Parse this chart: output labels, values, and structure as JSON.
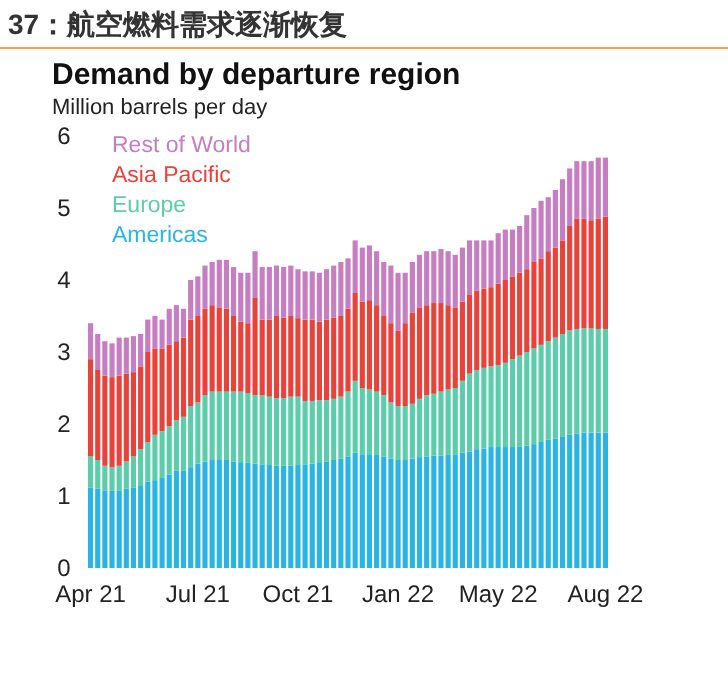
{
  "chart_data": {
    "type": "bar",
    "stacked": true,
    "title": "37：航空燃料需求逐渐恢复",
    "subtitle": "Demand by departure region",
    "ylabel": "Million barrels per day",
    "categories": [
      "Apr 21",
      null,
      null,
      null,
      null,
      null,
      null,
      null,
      null,
      null,
      null,
      null,
      null,
      null,
      null,
      "Jul 21",
      null,
      null,
      null,
      null,
      null,
      null,
      null,
      null,
      null,
      null,
      null,
      null,
      null,
      "Oct 21",
      null,
      null,
      null,
      null,
      null,
      null,
      null,
      null,
      null,
      null,
      null,
      null,
      null,
      "Jan 22",
      null,
      null,
      null,
      null,
      null,
      null,
      null,
      null,
      null,
      null,
      null,
      null,
      null,
      "May 22",
      null,
      null,
      null,
      null,
      null,
      null,
      null,
      null,
      null,
      null,
      null,
      null,
      null,
      null,
      "Aug 22"
    ],
    "series": [
      {
        "name": "Americas",
        "color": "#2ab4e4",
        "values": [
          1.12,
          1.1,
          1.07,
          1.07,
          1.07,
          1.1,
          1.12,
          1.15,
          1.2,
          1.22,
          1.25,
          1.3,
          1.35,
          1.35,
          1.4,
          1.45,
          1.48,
          1.5,
          1.5,
          1.5,
          1.48,
          1.47,
          1.46,
          1.45,
          1.44,
          1.43,
          1.42,
          1.42,
          1.42,
          1.43,
          1.44,
          1.45,
          1.47,
          1.48,
          1.5,
          1.52,
          1.55,
          1.6,
          1.58,
          1.58,
          1.57,
          1.55,
          1.52,
          1.5,
          1.5,
          1.52,
          1.54,
          1.55,
          1.56,
          1.56,
          1.57,
          1.58,
          1.6,
          1.62,
          1.65,
          1.66,
          1.68,
          1.68,
          1.68,
          1.68,
          1.69,
          1.7,
          1.72,
          1.75,
          1.78,
          1.8,
          1.82,
          1.85,
          1.87,
          1.88,
          1.88,
          1.88,
          1.88
        ]
      },
      {
        "name": "Europe",
        "color": "#5ccdaa",
        "values": [
          0.43,
          0.4,
          0.35,
          0.33,
          0.35,
          0.38,
          0.43,
          0.5,
          0.55,
          0.63,
          0.65,
          0.67,
          0.7,
          0.75,
          0.85,
          0.85,
          0.92,
          0.95,
          0.95,
          0.95,
          0.97,
          0.98,
          0.97,
          0.95,
          0.96,
          0.95,
          0.94,
          0.94,
          0.96,
          0.95,
          0.88,
          0.87,
          0.86,
          0.85,
          0.85,
          0.86,
          0.9,
          1.0,
          0.92,
          0.9,
          0.88,
          0.85,
          0.78,
          0.75,
          0.75,
          0.76,
          0.81,
          0.85,
          0.86,
          0.89,
          0.91,
          0.92,
          1.0,
          1.08,
          1.1,
          1.12,
          1.12,
          1.14,
          1.17,
          1.22,
          1.26,
          1.3,
          1.33,
          1.35,
          1.37,
          1.4,
          1.43,
          1.45,
          1.45,
          1.45,
          1.45,
          1.44,
          1.44
        ]
      },
      {
        "name": "Asia Pacific",
        "color": "#e8433a",
        "values": [
          1.35,
          1.25,
          1.25,
          1.25,
          1.25,
          1.22,
          1.17,
          1.15,
          1.25,
          1.2,
          1.15,
          1.13,
          1.1,
          1.1,
          1.2,
          1.2,
          1.2,
          1.2,
          1.17,
          1.15,
          1.05,
          0.97,
          0.97,
          1.35,
          1.05,
          1.07,
          1.14,
          1.12,
          1.12,
          1.09,
          1.13,
          1.13,
          1.09,
          1.12,
          1.13,
          1.12,
          1.15,
          1.22,
          1.2,
          1.24,
          1.2,
          1.1,
          1.1,
          1.05,
          1.15,
          1.27,
          1.27,
          1.25,
          1.26,
          1.23,
          1.17,
          1.12,
          1.1,
          1.1,
          1.1,
          1.1,
          1.1,
          1.13,
          1.15,
          1.15,
          1.15,
          1.15,
          1.2,
          1.2,
          1.25,
          1.25,
          1.3,
          1.45,
          1.53,
          1.52,
          1.5,
          1.53,
          1.56
        ]
      },
      {
        "name": "Rest of World",
        "color": "#c77dc2",
        "values": [
          0.5,
          0.5,
          0.48,
          0.47,
          0.53,
          0.5,
          0.5,
          0.45,
          0.45,
          0.45,
          0.4,
          0.5,
          0.5,
          0.4,
          0.55,
          0.55,
          0.6,
          0.6,
          0.66,
          0.68,
          0.68,
          0.68,
          0.7,
          0.65,
          0.73,
          0.73,
          0.7,
          0.7,
          0.7,
          0.68,
          0.67,
          0.67,
          0.68,
          0.7,
          0.72,
          0.75,
          0.7,
          0.73,
          0.75,
          0.76,
          0.75,
          0.75,
          0.8,
          0.8,
          0.7,
          0.7,
          0.73,
          0.75,
          0.72,
          0.75,
          0.75,
          0.73,
          0.75,
          0.75,
          0.7,
          0.67,
          0.65,
          0.7,
          0.7,
          0.65,
          0.65,
          0.75,
          0.75,
          0.8,
          0.75,
          0.8,
          0.85,
          0.8,
          0.8,
          0.8,
          0.82,
          0.85,
          0.82
        ]
      }
    ],
    "ylim": [
      0,
      6
    ],
    "yticks": [
      0,
      1,
      2,
      3,
      4,
      5,
      6
    ],
    "grid": false,
    "legend": "top left"
  }
}
